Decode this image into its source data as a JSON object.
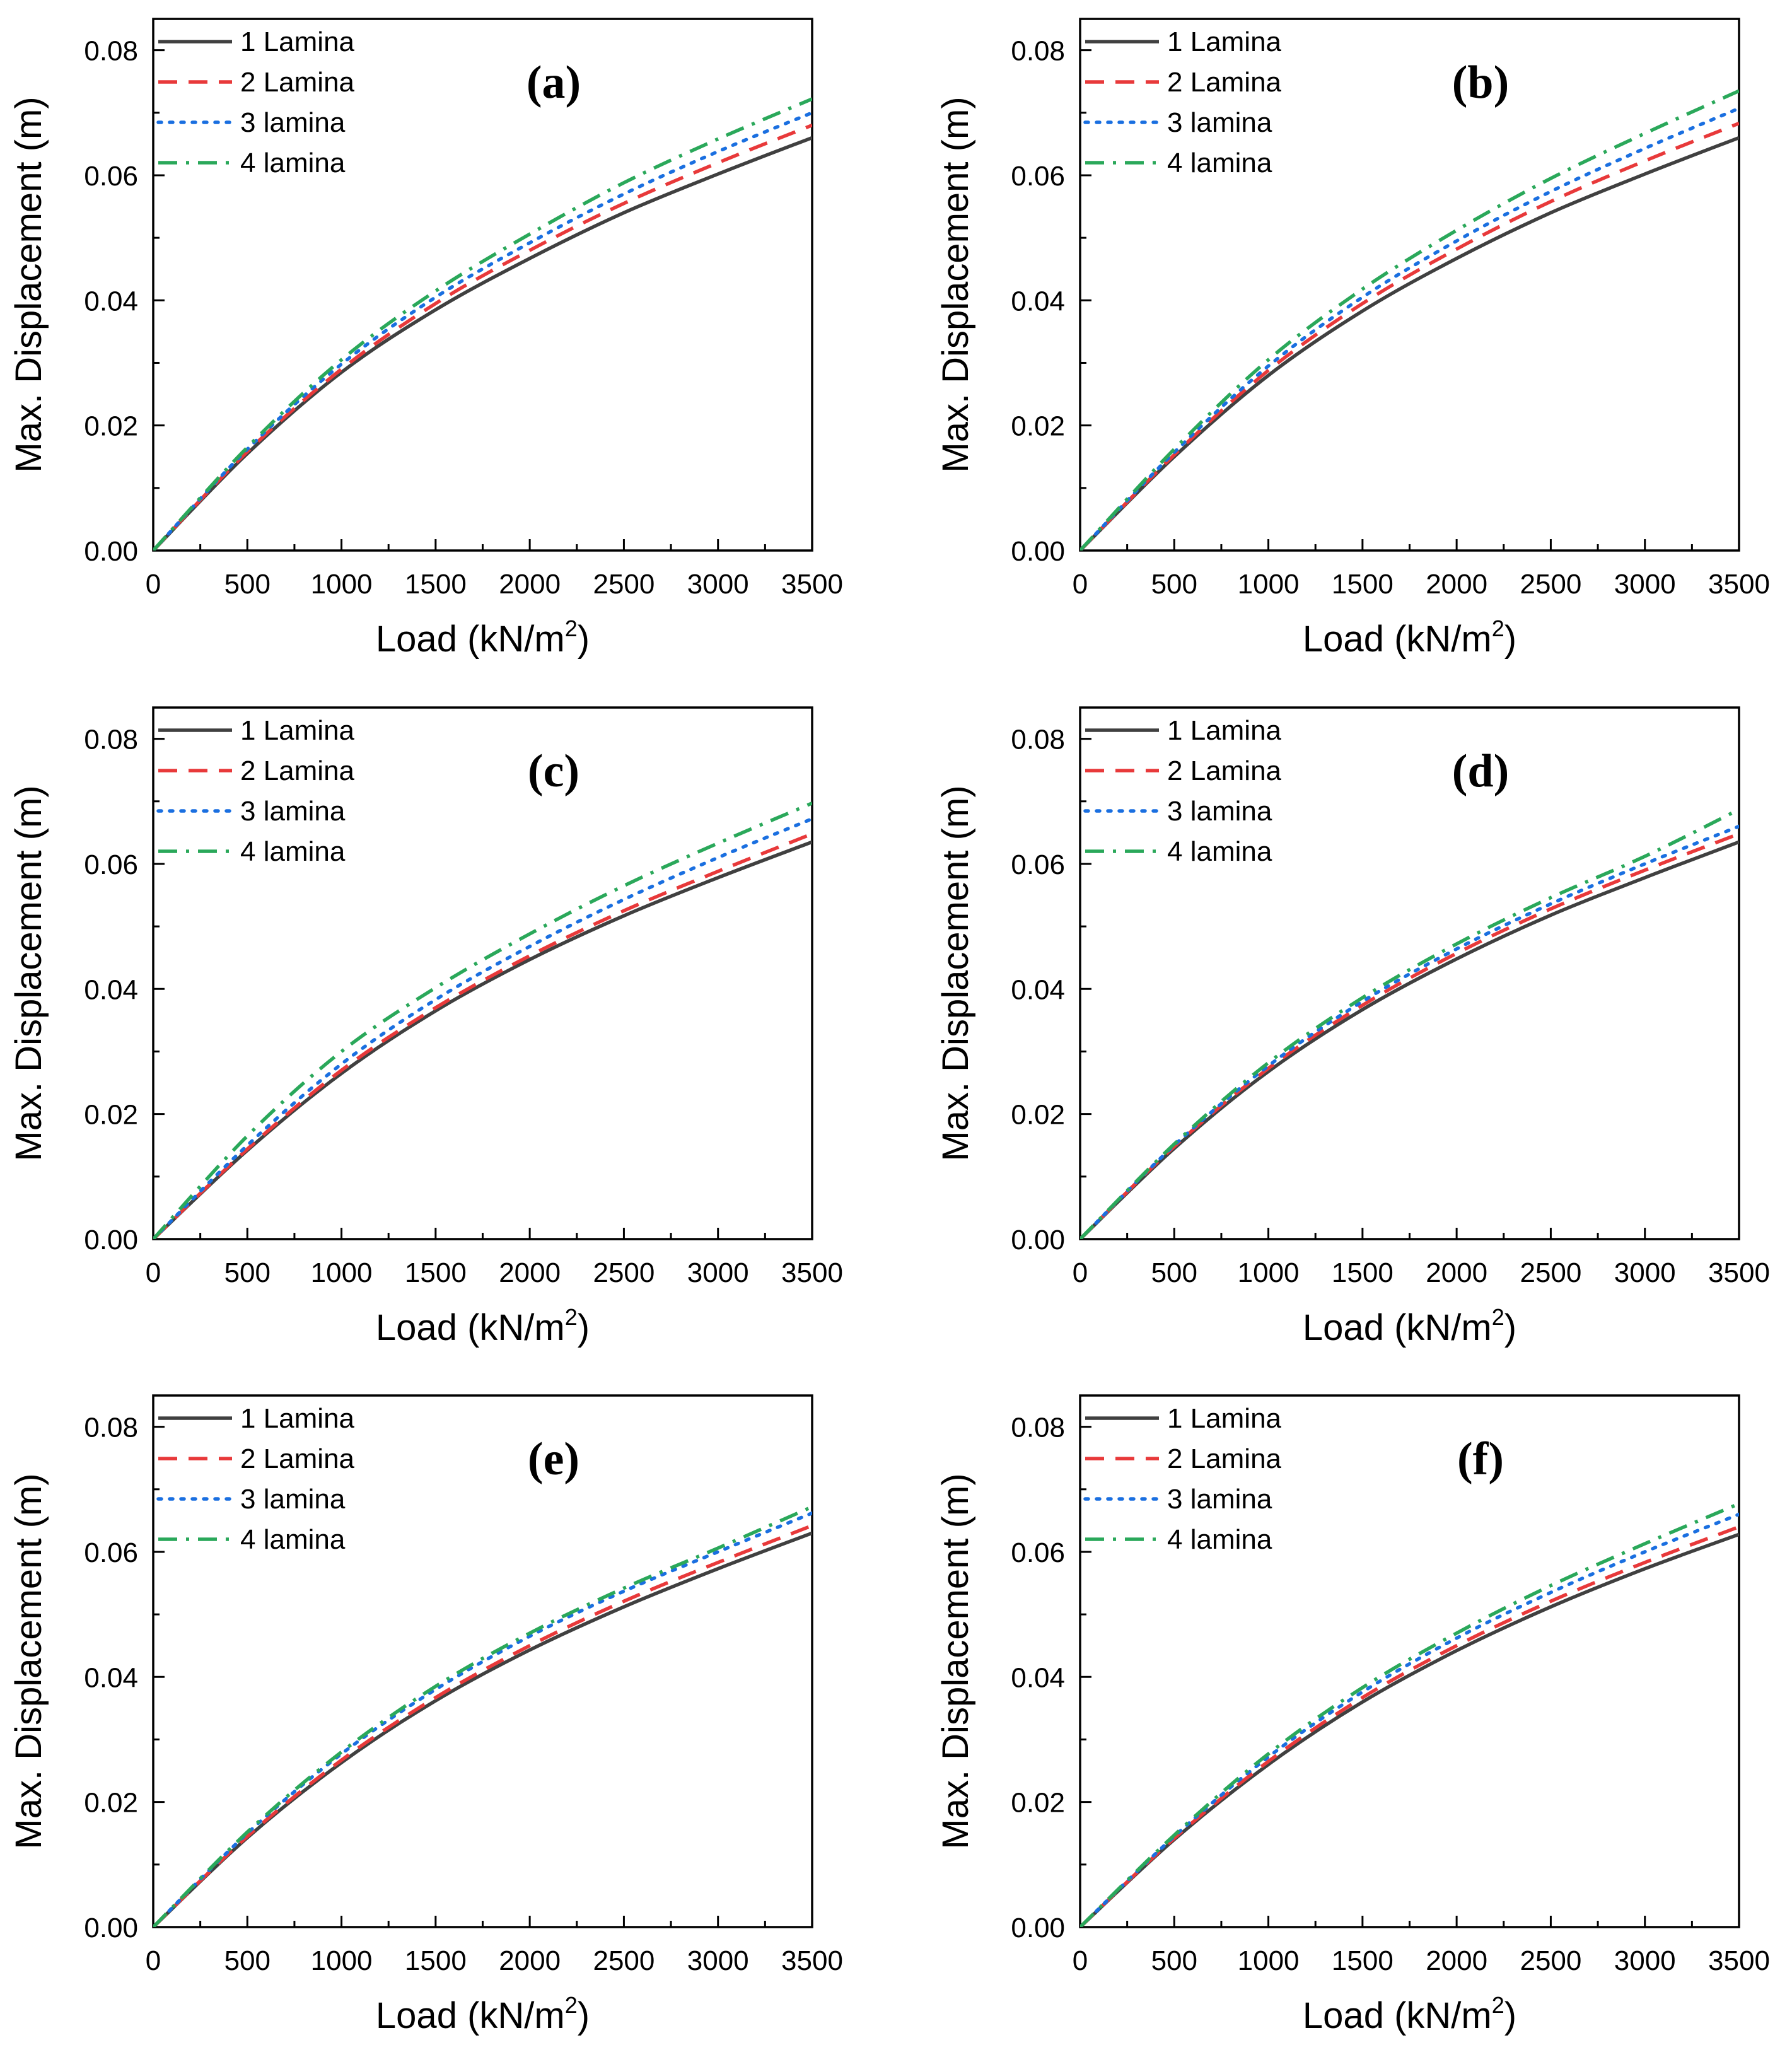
{
  "chart_data": {
    "type": "line",
    "xlabel": "Load (kN/m",
    "xlabel_superscript": "2",
    "xlabel_suffix": ")",
    "ylabel": "Max. Displacement (m)",
    "xlim": [
      0,
      3500
    ],
    "ylim": [
      0,
      0.085
    ],
    "x_ticks": [
      {
        "value": 0,
        "label": "0"
      },
      {
        "value": 500,
        "label": "500"
      },
      {
        "value": 1000,
        "label": "1000"
      },
      {
        "value": 1500,
        "label": "1500"
      },
      {
        "value": 2000,
        "label": "2000"
      },
      {
        "value": 2500,
        "label": "2500"
      },
      {
        "value": 3000,
        "label": "3000"
      },
      {
        "value": 3500,
        "label": "3500"
      }
    ],
    "y_ticks": [
      {
        "value": 0,
        "label": "0.00"
      },
      {
        "value": 0.02,
        "label": "0.02"
      },
      {
        "value": 0.04,
        "label": "0.04"
      },
      {
        "value": 0.06,
        "label": "0.06"
      },
      {
        "value": 0.08,
        "label": "0.08"
      }
    ],
    "legend_position": "top-left",
    "series_styles": [
      {
        "name": "1 Lamina",
        "color": "#404040",
        "dash": "solid"
      },
      {
        "name": "2 Lamina",
        "color": "#e8393a",
        "dash": "dashed"
      },
      {
        "name": "3 lamina",
        "color": "#1a6fe0",
        "dash": "dotted"
      },
      {
        "name": "4 lamina",
        "color": "#2aa85a",
        "dash": "dash-dot"
      }
    ],
    "panels": [
      {
        "label": "(a)",
        "x": [
          0,
          500,
          1000,
          1500,
          2000,
          2500,
          3000,
          3500
        ],
        "series": [
          {
            "name": "1 Lamina",
            "values": [
              0,
              0.0155,
              0.0285,
              0.0385,
              0.0467,
              0.054,
              0.0602,
              0.066
            ]
          },
          {
            "name": "2 Lamina",
            "values": [
              0,
              0.0158,
              0.029,
              0.0395,
              0.048,
              0.0555,
              0.062,
              0.068
            ]
          },
          {
            "name": "3 lamina",
            "values": [
              0,
              0.0162,
              0.0298,
              0.0405,
              0.0492,
              0.057,
              0.0638,
              0.07
            ]
          },
          {
            "name": "4 lamina",
            "values": [
              0,
              0.0165,
              0.0305,
              0.0415,
              0.0506,
              0.0588,
              0.0658,
              0.0722
            ]
          }
        ]
      },
      {
        "label": "(b)",
        "x": [
          0,
          500,
          1000,
          1500,
          2000,
          2500,
          3000,
          3500
        ],
        "series": [
          {
            "name": "1 Lamina",
            "values": [
              0,
              0.015,
              0.028,
              0.0383,
              0.0467,
              0.054,
              0.0602,
              0.066
            ]
          },
          {
            "name": "2 Lamina",
            "values": [
              0,
              0.0153,
              0.0288,
              0.0395,
              0.0482,
              0.0558,
              0.0623,
              0.0683
            ]
          },
          {
            "name": "3 lamina",
            "values": [
              0,
              0.0157,
              0.0295,
              0.0405,
              0.0495,
              0.0574,
              0.0643,
              0.0707
            ]
          },
          {
            "name": "4 lamina",
            "values": [
              0,
              0.0162,
              0.0305,
              0.0418,
              0.0512,
              0.0595,
              0.0667,
              0.0735
            ]
          }
        ]
      },
      {
        "label": "(c)",
        "x": [
          0,
          500,
          1000,
          1500,
          2000,
          2500,
          3000,
          3500
        ],
        "series": [
          {
            "name": "1 Lamina",
            "values": [
              0,
              0.0142,
              0.0265,
              0.0365,
              0.0447,
              0.0517,
              0.0578,
              0.0635
            ]
          },
          {
            "name": "2 Lamina",
            "values": [
              0,
              0.0144,
              0.027,
              0.037,
              0.0453,
              0.0525,
              0.0588,
              0.0648
            ]
          },
          {
            "name": "3 lamina",
            "values": [
              0,
              0.015,
              0.028,
              0.0383,
              0.0468,
              0.0543,
              0.061,
              0.0672
            ]
          },
          {
            "name": "4 lamina",
            "values": [
              0,
              0.0165,
              0.03,
              0.0402,
              0.0488,
              0.0565,
              0.0633,
              0.0697
            ]
          }
        ]
      },
      {
        "label": "(d)",
        "x": [
          0,
          500,
          1000,
          1500,
          2000,
          2500,
          3000,
          3500
        ],
        "series": [
          {
            "name": "1 Lamina",
            "values": [
              0,
              0.0145,
              0.0268,
              0.0367,
              0.0448,
              0.0518,
              0.0578,
              0.0635
            ]
          },
          {
            "name": "2 Lamina",
            "values": [
              0,
              0.0148,
              0.0273,
              0.0374,
              0.0457,
              0.0528,
              0.059,
              0.0648
            ]
          },
          {
            "name": "3 lamina",
            "values": [
              0,
              0.015,
              0.0277,
              0.038,
              0.0464,
              0.0536,
              0.06,
              0.066
            ]
          },
          {
            "name": "4 lamina",
            "values": [
              0,
              0.0152,
              0.0282,
              0.0386,
              0.0472,
              0.0546,
              0.0612,
              0.0687
            ]
          }
        ]
      },
      {
        "label": "(e)",
        "x": [
          0,
          500,
          1000,
          1500,
          2000,
          2500,
          3000,
          3500
        ],
        "series": [
          {
            "name": "1 Lamina",
            "values": [
              0,
              0.0143,
              0.0263,
              0.0362,
              0.0443,
              0.0512,
              0.0573,
              0.063
            ]
          },
          {
            "name": "2 Lamina",
            "values": [
              0,
              0.0145,
              0.0267,
              0.0367,
              0.045,
              0.0521,
              0.0583,
              0.0642
            ]
          },
          {
            "name": "3 lamina",
            "values": [
              0,
              0.015,
              0.0277,
              0.038,
              0.0465,
              0.0537,
              0.06,
              0.0662
            ]
          },
          {
            "name": "4 lamina",
            "values": [
              0,
              0.0152,
              0.028,
              0.0385,
              0.047,
              0.0542,
              0.0606,
              0.0672
            ]
          }
        ]
      },
      {
        "label": "(f)",
        "x": [
          0,
          500,
          1000,
          1500,
          2000,
          2500,
          3000,
          3500
        ],
        "series": [
          {
            "name": "1 Lamina",
            "values": [
              0,
              0.014,
              0.026,
              0.036,
              0.0442,
              0.0512,
              0.0573,
              0.0628
            ]
          },
          {
            "name": "2 Lamina",
            "values": [
              0,
              0.0142,
              0.0265,
              0.0367,
              0.045,
              0.0521,
              0.0583,
              0.064
            ]
          },
          {
            "name": "3 lamina",
            "values": [
              0,
              0.0145,
              0.0272,
              0.0376,
              0.0462,
              0.0535,
              0.06,
              0.066
            ]
          },
          {
            "name": "4 lamina",
            "values": [
              0,
              0.0147,
              0.0277,
              0.0383,
              0.047,
              0.0546,
              0.0613,
              0.0677
            ]
          }
        ]
      }
    ]
  }
}
